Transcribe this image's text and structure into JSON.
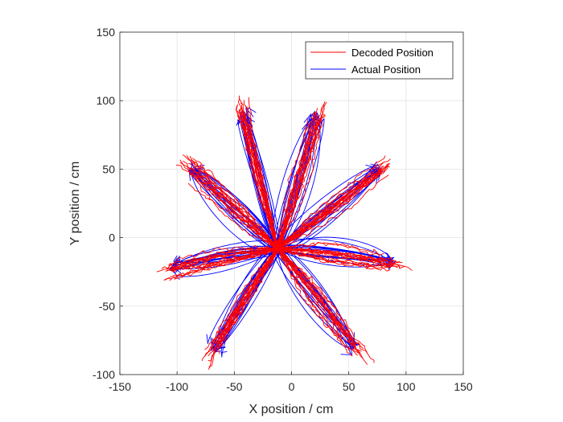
{
  "chart_data": {
    "type": "line",
    "title": "",
    "xlabel": "X position / cm",
    "ylabel": "Y position / cm",
    "xlim": [
      -150,
      150
    ],
    "ylim": [
      -100,
      150
    ],
    "xticks": [
      -150,
      -100,
      -50,
      0,
      50,
      100,
      150
    ],
    "yticks": [
      -100,
      -50,
      0,
      50,
      100,
      150
    ],
    "grid": true,
    "legend_position": "top-right",
    "center": [
      -12,
      -8
    ],
    "reach_targets": [
      {
        "x": -42,
        "y": 90
      },
      {
        "x": 22,
        "y": 88
      },
      {
        "x": 78,
        "y": 50
      },
      {
        "x": 88,
        "y": -18
      },
      {
        "x": 55,
        "y": -80
      },
      {
        "x": -68,
        "y": -82
      },
      {
        "x": -104,
        "y": -22
      },
      {
        "x": -88,
        "y": 50
      }
    ],
    "trials_per_target": 16,
    "series": [
      {
        "name": "Decoded Position",
        "color": "#ff0000"
      },
      {
        "name": "Actual Position",
        "color": "#0000ff"
      }
    ]
  }
}
